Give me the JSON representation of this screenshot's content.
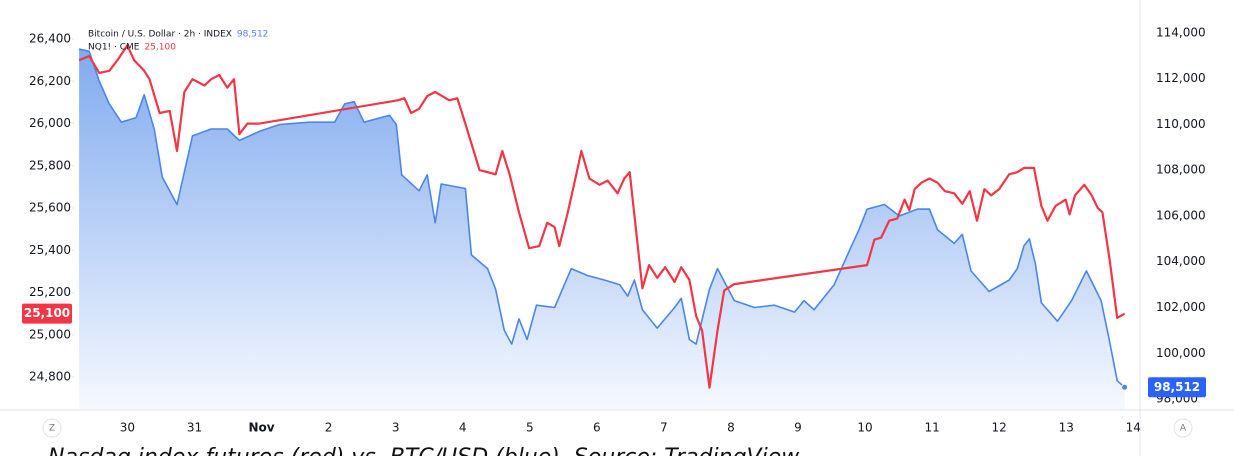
{
  "chart_data": {
    "type": "line",
    "xlim": [
      -0.9,
      16.1
    ],
    "xticks": [
      {
        "value": 1,
        "label": "30"
      },
      {
        "value": 2,
        "label": "31"
      },
      {
        "value": 3,
        "label": "Nov"
      },
      {
        "value": 4,
        "label": "2"
      },
      {
        "value": 5,
        "label": "3"
      },
      {
        "value": 6,
        "label": "4"
      },
      {
        "value": 7,
        "label": "5"
      },
      {
        "value": 8,
        "label": "6"
      },
      {
        "value": 9,
        "label": "7"
      },
      {
        "value": 10,
        "label": "8"
      },
      {
        "value": 11,
        "label": "9"
      },
      {
        "value": 12,
        "label": "10"
      },
      {
        "value": 13,
        "label": "11"
      },
      {
        "value": 14,
        "label": "12"
      },
      {
        "value": 15,
        "label": "13"
      },
      {
        "value": 16,
        "label": "14"
      }
    ],
    "ylim": [
      24644,
      26585
    ],
    "yticks": [
      {
        "value": 24800,
        "label": "24,800"
      },
      {
        "value": 25000,
        "label": "25,000"
      },
      {
        "value": 25200,
        "label": "25,200"
      },
      {
        "value": 25400,
        "label": "25,400"
      },
      {
        "value": 25600,
        "label": "25,600"
      },
      {
        "value": 25800,
        "label": "25,800"
      },
      {
        "value": 26000,
        "label": "26,000"
      },
      {
        "value": 26200,
        "label": "26,200"
      },
      {
        "value": 26400,
        "label": "26,400"
      }
    ],
    "y2lim": [
      97520,
      115440
    ],
    "y2ticks": [
      {
        "value": 98000,
        "label": "98,000"
      },
      {
        "value": 100000,
        "label": "100,000"
      },
      {
        "value": 102000,
        "label": "102,000"
      },
      {
        "value": 104000,
        "label": "104,000"
      },
      {
        "value": 106000,
        "label": "106,000"
      },
      {
        "value": 108000,
        "label": "108,000"
      },
      {
        "value": 110000,
        "label": "110,000"
      },
      {
        "value": 112000,
        "label": "112,000"
      },
      {
        "value": 114000,
        "label": "114,000"
      }
    ],
    "grid": true,
    "series": [
      {
        "name": "Bitcoin / U.S. Dollar · 2h · INDEX",
        "legend_value": "98,512",
        "color": "#4a86e8",
        "axis": "y2",
        "area": true,
        "x": [
          0.28,
          0.43,
          0.58,
          0.73,
          0.91,
          1.13,
          1.25,
          1.4,
          1.52,
          1.74,
          1.97,
          2.25,
          2.49,
          2.67,
          2.97,
          3.27,
          3.71,
          4.09,
          4.24,
          4.38,
          4.53,
          4.91,
          5.01,
          5.09,
          5.35,
          5.47,
          5.59,
          5.68,
          6.04,
          6.13,
          6.37,
          6.49,
          6.62,
          6.73,
          6.84,
          6.96,
          7.1,
          7.37,
          7.62,
          7.86,
          8.11,
          8.34,
          8.46,
          8.56,
          8.68,
          8.9,
          9.16,
          9.26,
          9.38,
          9.48,
          9.68,
          9.8,
          10.05,
          10.35,
          10.65,
          10.95,
          11.09,
          11.24,
          11.54,
          11.8,
          11.91,
          12.03,
          12.29,
          12.51,
          12.78,
          12.96,
          13.08,
          13.33,
          13.45,
          13.58,
          13.85,
          14.15,
          14.27,
          14.37,
          14.45,
          14.54,
          14.63,
          14.87,
          15.08,
          15.3,
          15.52,
          15.64,
          15.76,
          15.87
        ],
        "values": [
          113300,
          113200,
          111900,
          110900,
          110100,
          110300,
          111300,
          109800,
          107700,
          106500,
          109500,
          109800,
          109800,
          109300,
          109700,
          110000,
          110100,
          110100,
          110900,
          111000,
          110100,
          110400,
          110000,
          107800,
          107100,
          107800,
          105700,
          107400,
          107200,
          104300,
          103700,
          102800,
          101000,
          100400,
          101500,
          100600,
          102100,
          102000,
          103700,
          103400,
          103200,
          103000,
          102500,
          103200,
          101900,
          101100,
          102000,
          102400,
          100600,
          100400,
          102800,
          103700,
          102300,
          102000,
          102100,
          101800,
          102300,
          101900,
          103000,
          104700,
          105400,
          106300,
          106500,
          106000,
          106300,
          106300,
          105400,
          104800,
          105200,
          103600,
          102700,
          103200,
          103700,
          104700,
          105000,
          103900,
          102200,
          101400,
          102300,
          103600,
          102300,
          100600,
          98800,
          98512
        ]
      },
      {
        "name": "NQ1! · CME",
        "legend_value": "25,100",
        "color": "#f23645",
        "axis": "y",
        "area": false,
        "x": [
          0.28,
          0.43,
          0.58,
          0.73,
          0.85,
          1.0,
          1.1,
          1.25,
          1.33,
          1.48,
          1.63,
          1.74,
          1.85,
          1.97,
          2.15,
          2.25,
          2.37,
          2.49,
          2.59,
          2.67,
          2.79,
          2.97,
          5.03,
          5.13,
          5.23,
          5.35,
          5.47,
          5.59,
          5.8,
          5.92,
          6.02,
          6.25,
          6.49,
          6.59,
          6.7,
          6.84,
          6.99,
          7.14,
          7.26,
          7.37,
          7.44,
          7.56,
          7.66,
          7.77,
          7.89,
          8.04,
          8.16,
          8.31,
          8.41,
          8.49,
          8.68,
          8.78,
          8.9,
          9.02,
          9.16,
          9.26,
          9.38,
          9.48,
          9.57,
          9.68,
          9.8,
          9.9,
          10.05,
          12.03,
          12.14,
          12.24,
          12.36,
          12.48,
          12.59,
          12.66,
          12.74,
          12.84,
          12.96,
          13.08,
          13.19,
          13.33,
          13.45,
          13.56,
          13.67,
          13.78,
          13.88,
          14.0,
          14.15,
          14.27,
          14.37,
          14.52,
          14.63,
          14.72,
          14.84,
          14.99,
          15.05,
          15.13,
          15.27,
          15.38,
          15.47,
          15.54,
          15.65,
          15.76,
          15.87
        ],
        "values": [
          26300,
          26320,
          26240,
          26250,
          26300,
          26370,
          26300,
          26250,
          26210,
          26050,
          26060,
          25870,
          26150,
          26210,
          26180,
          26210,
          26230,
          26170,
          26210,
          25950,
          26000,
          26000,
          26110,
          26120,
          26050,
          26070,
          26130,
          26150,
          26110,
          26120,
          26020,
          25780,
          25760,
          25870,
          25760,
          25580,
          25410,
          25420,
          25530,
          25510,
          25420,
          25570,
          25710,
          25870,
          25740,
          25710,
          25730,
          25670,
          25740,
          25770,
          25220,
          25330,
          25270,
          25320,
          25250,
          25320,
          25260,
          25090,
          25020,
          24750,
          25020,
          25210,
          25240,
          25330,
          25450,
          25460,
          25540,
          25550,
          25640,
          25590,
          25690,
          25720,
          25740,
          25720,
          25680,
          25670,
          25620,
          25680,
          25540,
          25690,
          25660,
          25690,
          25760,
          25770,
          25790,
          25790,
          25610,
          25540,
          25610,
          25640,
          25570,
          25660,
          25710,
          25660,
          25600,
          25580,
          25350,
          25080,
          25100
        ]
      }
    ],
    "price_labels": [
      {
        "value": 25100,
        "label": "25,100",
        "axis": "y",
        "color": "#f23645"
      },
      {
        "value": 98512,
        "label": "98,512",
        "axis": "y2",
        "color": "#2962ff"
      }
    ],
    "scale_buttons": [
      "Z",
      "A"
    ],
    "caption": "Nasdaq index futures (red) vs. BTC/USD (blue). Source: TradingView"
  }
}
